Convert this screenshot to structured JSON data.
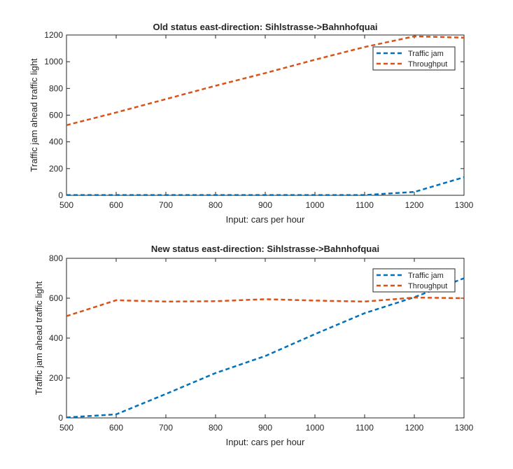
{
  "chart_data": [
    {
      "type": "line",
      "title": "Old status east-direction: Sihlstrasse->Bahnhofquai",
      "xlabel": "Input: cars per hour",
      "ylabel": "Traffic jam ahead traffic light",
      "xlim": [
        500,
        1300
      ],
      "ylim": [
        0,
        1200
      ],
      "xticks": [
        "500",
        "600",
        "700",
        "800",
        "900",
        "1000",
        "1100",
        "1200",
        "1300"
      ],
      "yticks": [
        "0",
        "200",
        "400",
        "600",
        "800",
        "1000",
        "1200"
      ],
      "x": [
        500,
        600,
        700,
        800,
        900,
        1000,
        1100,
        1200,
        1300
      ],
      "series": [
        {
          "name": "Traffic jam",
          "color": "#0072BD",
          "values": [
            2,
            2,
            2,
            2,
            2,
            2,
            2,
            25,
            135
          ]
        },
        {
          "name": "Throughput",
          "color": "#D95319",
          "values": [
            525,
            620,
            720,
            820,
            915,
            1015,
            1110,
            1190,
            1180
          ]
        }
      ],
      "legend": "top-right",
      "grid": false
    },
    {
      "type": "line",
      "title": "New status east-direction: Sihlstrasse->Bahnhofquai",
      "xlabel": "Input: cars per hour",
      "ylabel": "Traffic jam ahead traffic light",
      "xlim": [
        500,
        1300
      ],
      "ylim": [
        0,
        800
      ],
      "xticks": [
        "500",
        "600",
        "700",
        "800",
        "900",
        "1000",
        "1100",
        "1200",
        "1300"
      ],
      "yticks": [
        "0",
        "200",
        "400",
        "600",
        "800"
      ],
      "x": [
        500,
        600,
        700,
        800,
        900,
        1000,
        1100,
        1200,
        1300
      ],
      "series": [
        {
          "name": "Traffic jam",
          "color": "#0072BD",
          "values": [
            2,
            18,
            120,
            225,
            310,
            420,
            525,
            605,
            700
          ]
        },
        {
          "name": "Throughput",
          "color": "#D95319",
          "values": [
            510,
            590,
            583,
            585,
            595,
            588,
            583,
            603,
            600
          ]
        }
      ],
      "legend": "top-right",
      "grid": false
    }
  ]
}
